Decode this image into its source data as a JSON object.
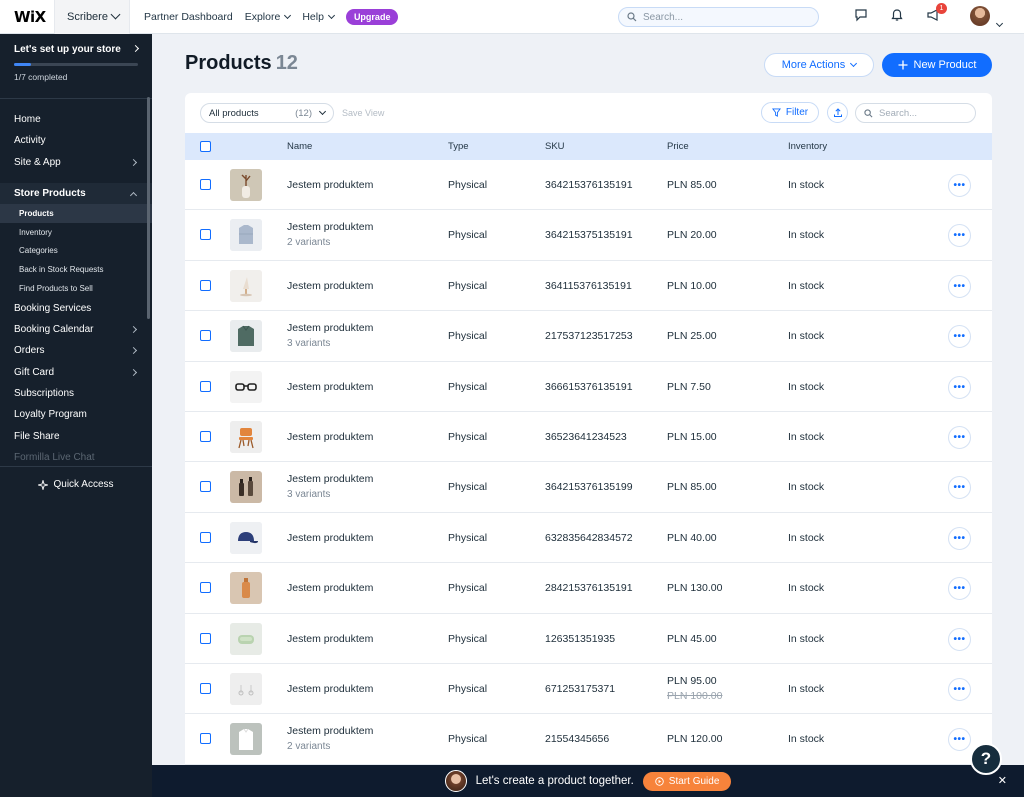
{
  "topbar": {
    "logo": "WiX",
    "site_name": "Scribere",
    "nav": [
      "Partner Dashboard",
      "Explore",
      "Help"
    ],
    "upgrade_label": "Upgrade",
    "search_placeholder": "Search...",
    "notification_badge": "1"
  },
  "sidebar": {
    "setup_title": "Let's set up your store",
    "setup_progress": "1/7 completed",
    "setup_progress_fraction": 0.14,
    "items_top": [
      {
        "label": "Home",
        "chevron": false
      },
      {
        "label": "Activity",
        "chevron": false
      },
      {
        "label": "Site & App",
        "chevron": true
      }
    ],
    "store_products": "Store Products",
    "sub_items": [
      "Products",
      "Inventory",
      "Categories",
      "Back in Stock Requests",
      "Find Products to Sell"
    ],
    "items_bottom": [
      {
        "label": "Booking Services",
        "chevron": false
      },
      {
        "label": "Booking Calendar",
        "chevron": true
      },
      {
        "label": "Orders",
        "chevron": true
      },
      {
        "label": "Gift Card",
        "chevron": true
      },
      {
        "label": "Subscriptions",
        "chevron": false
      },
      {
        "label": "Loyalty Program",
        "chevron": false
      },
      {
        "label": "File Share",
        "chevron": false
      },
      {
        "label": "Formilla Live Chat",
        "chevron": false
      }
    ],
    "quick_access": "Quick Access"
  },
  "page": {
    "title": "Products",
    "count": "12",
    "more_actions": "More Actions",
    "new_product": "New Product"
  },
  "toolbar": {
    "view_label": "All products",
    "view_count": "(12)",
    "save_view": "Save View",
    "filter": "Filter",
    "search_placeholder": "Search..."
  },
  "table": {
    "headers": {
      "name": "Name",
      "type": "Type",
      "sku": "SKU",
      "price": "Price",
      "inventory": "Inventory"
    },
    "rows": [
      {
        "thumb": "vase",
        "name": "Jestem produktem",
        "variants": "",
        "type": "Physical",
        "sku": "364215376135191",
        "price": "PLN 85.00",
        "old_price": "",
        "inventory": "In stock"
      },
      {
        "thumb": "shirt",
        "name": "Jestem produktem",
        "variants": "2 variants",
        "type": "Physical",
        "sku": "364215375135191",
        "price": "PLN 20.00",
        "old_price": "",
        "inventory": "In stock"
      },
      {
        "thumb": "lamp",
        "name": "Jestem produktem",
        "variants": "",
        "type": "Physical",
        "sku": "364115376135191",
        "price": "PLN 10.00",
        "old_price": "",
        "inventory": "In stock"
      },
      {
        "thumb": "green-shirt",
        "name": "Jestem produktem",
        "variants": "3 variants",
        "type": "Physical",
        "sku": "217537123517253",
        "price": "PLN 25.00",
        "old_price": "",
        "inventory": "In stock"
      },
      {
        "thumb": "glasses",
        "name": "Jestem produktem",
        "variants": "",
        "type": "Physical",
        "sku": "366615376135191",
        "price": "PLN 7.50",
        "old_price": "",
        "inventory": "In stock"
      },
      {
        "thumb": "chair",
        "name": "Jestem produktem",
        "variants": "",
        "type": "Physical",
        "sku": "36523641234523",
        "price": "PLN 15.00",
        "old_price": "",
        "inventory": "In stock"
      },
      {
        "thumb": "bottles",
        "name": "Jestem produktem",
        "variants": "3 variants",
        "type": "Physical",
        "sku": "364215376135199",
        "price": "PLN 85.00",
        "old_price": "",
        "inventory": "In stock"
      },
      {
        "thumb": "cap",
        "name": "Jestem produktem",
        "variants": "",
        "type": "Physical",
        "sku": "632835642834572",
        "price": "PLN 40.00",
        "old_price": "",
        "inventory": "In stock"
      },
      {
        "thumb": "bottle",
        "name": "Jestem produktem",
        "variants": "",
        "type": "Physical",
        "sku": "284215376135191",
        "price": "PLN 130.00",
        "old_price": "",
        "inventory": "In stock"
      },
      {
        "thumb": "soap",
        "name": "Jestem produktem",
        "variants": "",
        "type": "Physical",
        "sku": "126351351935",
        "price": "PLN 45.00",
        "old_price": "",
        "inventory": "In stock"
      },
      {
        "thumb": "earrings",
        "name": "Jestem produktem",
        "variants": "",
        "type": "Physical",
        "sku": "671253175371",
        "price": "PLN 95.00",
        "old_price": "PLN 100.00",
        "inventory": "In stock"
      },
      {
        "thumb": "tshirt",
        "name": "Jestem produktem",
        "variants": "2 variants",
        "type": "Physical",
        "sku": "21554345656",
        "price": "PLN 120.00",
        "old_price": "",
        "inventory": "In stock"
      }
    ]
  },
  "banner": {
    "text": "Let's create a product together.",
    "button": "Start Guide"
  },
  "help_label": "?",
  "colors": {
    "accent": "#116dff",
    "sidebar_bg": "#16202c",
    "banner_bg": "#0e1b2e",
    "guide_orange": "#f7833b",
    "upgrade_purple": "#9a3fd8"
  }
}
